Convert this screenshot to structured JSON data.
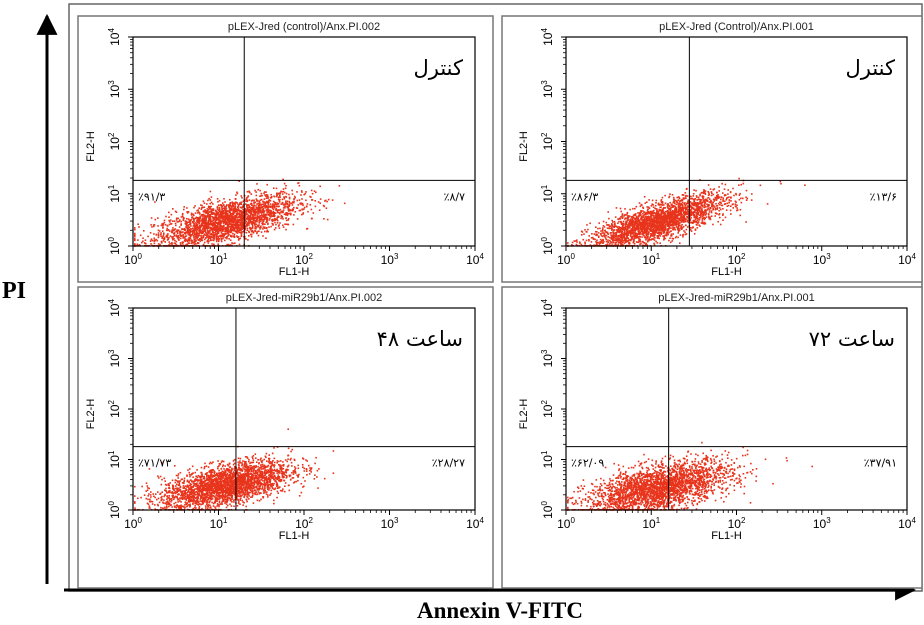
{
  "figure": {
    "y_axis_label": "PI",
    "x_axis_label": "Annexin V-FITC"
  },
  "chart_data": [
    {
      "type": "scatter",
      "panel": "top-left",
      "title": "pLEX-Jred (control)/Anx.PI.002",
      "xlabel": "FL1-H",
      "ylabel": "FL2-H",
      "x_scale": "log",
      "y_scale": "log",
      "xlim": [
        1,
        10000
      ],
      "ylim": [
        1,
        10000
      ],
      "x_ticks": [
        1,
        10,
        100,
        1000,
        10000
      ],
      "y_ticks": [
        1,
        10,
        100,
        1000,
        10000
      ],
      "x_tick_labels": [
        {
          "base": "10",
          "exp": "0"
        },
        {
          "base": "10",
          "exp": "1"
        },
        {
          "base": "10",
          "exp": "2"
        },
        {
          "base": "10",
          "exp": "3"
        },
        {
          "base": "10",
          "exp": "4"
        }
      ],
      "y_tick_labels": [
        {
          "base": "10",
          "exp": "0"
        },
        {
          "base": "10",
          "exp": "1"
        },
        {
          "base": "10",
          "exp": "2"
        },
        {
          "base": "10",
          "exp": "3"
        },
        {
          "base": "10",
          "exp": "4"
        }
      ],
      "gate": {
        "x": 20,
        "y": 18
      },
      "annotation": "کنترل",
      "quadrant_labels": {
        "lower_left": "٪۹۱/۳",
        "lower_right": "٪۸/۷"
      },
      "cluster": {
        "center_x": 12,
        "center_y": 3.0,
        "spread_x": 0.42,
        "spread_y": 0.2,
        "tilt": 0.4,
        "count": 2600
      },
      "point_color": "#e8341c"
    },
    {
      "type": "scatter",
      "panel": "top-right",
      "title": "pLEX-Jred (Control)/Anx.PI.001",
      "xlabel": "FL1-H",
      "ylabel": "FL2-H",
      "x_scale": "log",
      "y_scale": "log",
      "xlim": [
        1,
        10000
      ],
      "ylim": [
        1,
        10000
      ],
      "x_ticks": [
        1,
        10,
        100,
        1000,
        10000
      ],
      "y_ticks": [
        1,
        10,
        100,
        1000,
        10000
      ],
      "x_tick_labels": [
        {
          "base": "10",
          "exp": "0"
        },
        {
          "base": "10",
          "exp": "1"
        },
        {
          "base": "10",
          "exp": "2"
        },
        {
          "base": "10",
          "exp": "3"
        },
        {
          "base": "10",
          "exp": "4"
        }
      ],
      "y_tick_labels": [
        {
          "base": "10",
          "exp": "0"
        },
        {
          "base": "10",
          "exp": "1"
        },
        {
          "base": "10",
          "exp": "2"
        },
        {
          "base": "10",
          "exp": "3"
        },
        {
          "base": "10",
          "exp": "4"
        }
      ],
      "gate": {
        "x": 28,
        "y": 18
      },
      "annotation": "کنترل",
      "quadrant_labels": {
        "lower_left": "٪۸۶/۳",
        "lower_right": "٪۱۳/۶"
      },
      "cluster": {
        "center_x": 12,
        "center_y": 3.0,
        "spread_x": 0.4,
        "spread_y": 0.17,
        "tilt": 0.5,
        "count": 2600
      },
      "point_color": "#e8341c"
    },
    {
      "type": "scatter",
      "panel": "bottom-left",
      "title": "pLEX-Jred-miR29b1/Anx.PI.002",
      "xlabel": "FL1-H",
      "ylabel": "FL2-H",
      "x_scale": "log",
      "y_scale": "log",
      "xlim": [
        1,
        10000
      ],
      "ylim": [
        1,
        10000
      ],
      "x_ticks": [
        1,
        10,
        100,
        1000,
        10000
      ],
      "y_ticks": [
        1,
        10,
        100,
        1000,
        10000
      ],
      "x_tick_labels": [
        {
          "base": "10",
          "exp": "0"
        },
        {
          "base": "10",
          "exp": "1"
        },
        {
          "base": "10",
          "exp": "2"
        },
        {
          "base": "10",
          "exp": "3"
        },
        {
          "base": "10",
          "exp": "4"
        }
      ],
      "y_tick_labels": [
        {
          "base": "10",
          "exp": "0"
        },
        {
          "base": "10",
          "exp": "1"
        },
        {
          "base": "10",
          "exp": "2"
        },
        {
          "base": "10",
          "exp": "3"
        },
        {
          "base": "10",
          "exp": "4"
        }
      ],
      "gate": {
        "x": 16,
        "y": 18
      },
      "annotation": "۴۸ ساعت",
      "quadrant_labels": {
        "lower_left": "٪۷۱/۷۳",
        "lower_right": "٪۲۸/۲۷"
      },
      "cluster": {
        "center_x": 12,
        "center_y": 3.2,
        "spread_x": 0.38,
        "spread_y": 0.2,
        "tilt": 0.35,
        "count": 2800
      },
      "point_color": "#e8341c"
    },
    {
      "type": "scatter",
      "panel": "bottom-right",
      "title": "pLEX-Jred-miR29b1/Anx.PI.001",
      "xlabel": "FL1-H",
      "ylabel": "FL2-H",
      "x_scale": "log",
      "y_scale": "log",
      "xlim": [
        1,
        10000
      ],
      "ylim": [
        1,
        10000
      ],
      "x_ticks": [
        1,
        10,
        100,
        1000,
        10000
      ],
      "y_ticks": [
        1,
        10,
        100,
        1000,
        10000
      ],
      "x_tick_labels": [
        {
          "base": "10",
          "exp": "0"
        },
        {
          "base": "10",
          "exp": "1"
        },
        {
          "base": "10",
          "exp": "2"
        },
        {
          "base": "10",
          "exp": "3"
        },
        {
          "base": "10",
          "exp": "4"
        }
      ],
      "y_tick_labels": [
        {
          "base": "10",
          "exp": "0"
        },
        {
          "base": "10",
          "exp": "1"
        },
        {
          "base": "10",
          "exp": "2"
        },
        {
          "base": "10",
          "exp": "3"
        },
        {
          "base": "10",
          "exp": "4"
        }
      ],
      "gate": {
        "x": 16,
        "y": 18
      },
      "annotation": "۷۲ ساعت",
      "quadrant_labels": {
        "lower_left": "٪۶۲/۰۹",
        "lower_right": "٪۳۷/۹۱"
      },
      "cluster": {
        "center_x": 12,
        "center_y": 2.8,
        "spread_x": 0.42,
        "spread_y": 0.22,
        "tilt": 0.35,
        "count": 2700
      },
      "point_color": "#e8341c"
    }
  ]
}
